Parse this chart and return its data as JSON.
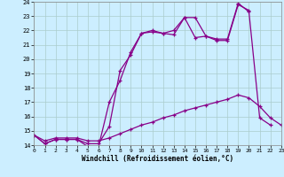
{
  "xlabel": "Windchill (Refroidissement éolien,°C)",
  "xlim": [
    0,
    23
  ],
  "ylim": [
    14,
    24
  ],
  "yticks": [
    14,
    15,
    16,
    17,
    18,
    19,
    20,
    21,
    22,
    23,
    24
  ],
  "xticks": [
    0,
    1,
    2,
    3,
    4,
    5,
    6,
    7,
    8,
    9,
    10,
    11,
    12,
    13,
    14,
    15,
    16,
    17,
    18,
    19,
    20,
    21,
    22,
    23
  ],
  "background_color": "#cceeff",
  "line_color": "#880088",
  "grid_color": "#aacccc",
  "line1_x": [
    0,
    1,
    2,
    3,
    4,
    5,
    6,
    7,
    8,
    9,
    10,
    11,
    12,
    13,
    14,
    15,
    16,
    17,
    18,
    19,
    20,
    21,
    22
  ],
  "line1_y": [
    14.7,
    14.1,
    14.4,
    14.4,
    14.4,
    13.9,
    13.9,
    17.0,
    18.5,
    20.5,
    21.8,
    22.0,
    21.8,
    22.0,
    22.9,
    22.9,
    21.6,
    21.4,
    21.4,
    23.9,
    23.3,
    15.9,
    15.4
  ],
  "line2_x": [
    0,
    1,
    2,
    3,
    4,
    5,
    6,
    7,
    8,
    9,
    10,
    11,
    12,
    13,
    14,
    15,
    16,
    17,
    18,
    19,
    20
  ],
  "line2_y": [
    14.7,
    14.1,
    14.4,
    14.4,
    14.4,
    14.1,
    14.1,
    15.3,
    19.2,
    20.3,
    21.8,
    21.9,
    21.8,
    21.7,
    22.9,
    21.5,
    21.6,
    21.3,
    21.3,
    23.8,
    23.4
  ],
  "line3_x": [
    0,
    1,
    2,
    3,
    4,
    5,
    6,
    7,
    8,
    9,
    10,
    11,
    12,
    13,
    14,
    15,
    16,
    17,
    18,
    19,
    20,
    21,
    22,
    23
  ],
  "line3_y": [
    14.7,
    14.3,
    14.5,
    14.5,
    14.5,
    14.3,
    14.3,
    14.5,
    14.8,
    15.1,
    15.4,
    15.6,
    15.9,
    16.1,
    16.4,
    16.6,
    16.8,
    17.0,
    17.2,
    17.5,
    17.3,
    16.7,
    15.9,
    15.4
  ]
}
